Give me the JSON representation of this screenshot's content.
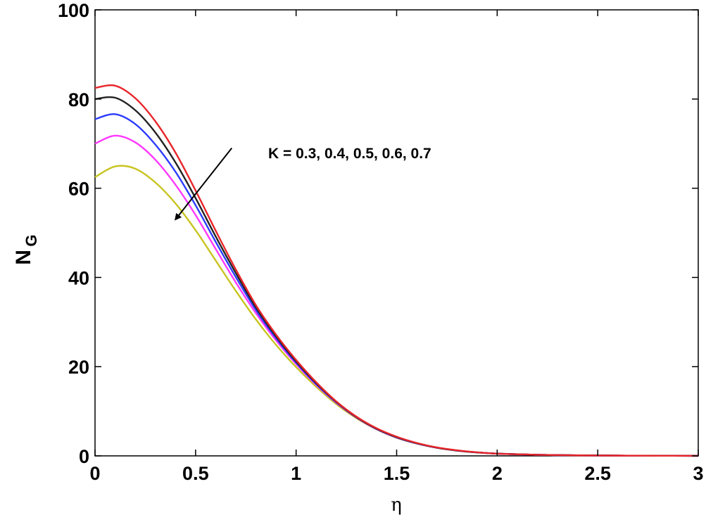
{
  "chart_data": {
    "type": "line",
    "title": "",
    "xlabel": "η",
    "ylabel": "N",
    "ylabel_subscript": "G",
    "xlim": [
      0,
      3
    ],
    "ylim": [
      0,
      100
    ],
    "x_ticks": [
      0,
      0.5,
      1,
      1.5,
      2,
      2.5,
      3
    ],
    "x_tick_labels": [
      "0",
      "0.5",
      "1",
      "1.5",
      "2",
      "2.5",
      "3"
    ],
    "y_ticks": [
      0,
      20,
      40,
      60,
      80,
      100
    ],
    "y_tick_labels": [
      "0",
      "20",
      "40",
      "60",
      "80",
      "100"
    ],
    "grid": false,
    "annotation": {
      "text": "K   = 0.3, 0.4, 0.5, 0.6, 0.7",
      "arrow_from": [
        0.68,
        69
      ],
      "arrow_to": [
        0.4,
        53
      ]
    },
    "x": [
      0,
      0.1,
      0.2,
      0.3,
      0.4,
      0.5,
      0.6,
      0.7,
      0.8,
      0.9,
      1.0,
      1.1,
      1.2,
      1.3,
      1.4,
      1.5,
      1.6,
      1.7,
      1.8,
      1.9,
      2.0,
      2.2,
      2.4,
      2.6,
      2.8,
      3.0
    ],
    "series": [
      {
        "color": "#e8262b",
        "values": [
          82.5,
          83.0,
          80.2,
          75.0,
          68.0,
          59.5,
          50.5,
          41.8,
          33.8,
          27.2,
          21.5,
          16.5,
          12.2,
          8.8,
          6.2,
          4.3,
          2.9,
          1.9,
          1.25,
          0.8,
          0.5,
          0.25,
          0.12,
          0.06,
          0.03,
          0.01
        ]
      },
      {
        "color": "#222222",
        "values": [
          80.0,
          80.3,
          77.5,
          72.5,
          65.8,
          57.8,
          49.2,
          41.0,
          33.3,
          26.8,
          21.2,
          16.3,
          12.1,
          8.7,
          6.1,
          4.2,
          2.85,
          1.85,
          1.2,
          0.78,
          0.5,
          0.25,
          0.12,
          0.06,
          0.03,
          0.01
        ]
      },
      {
        "color": "#2b3bff",
        "values": [
          75.5,
          76.6,
          74.4,
          69.8,
          63.7,
          56.2,
          48.0,
          40.1,
          32.7,
          26.4,
          20.9,
          16.1,
          12.0,
          8.65,
          6.05,
          4.15,
          2.8,
          1.85,
          1.2,
          0.78,
          0.5,
          0.24,
          0.12,
          0.06,
          0.03,
          0.01
        ]
      },
      {
        "color": "#ff38ff",
        "values": [
          70.0,
          71.8,
          70.3,
          66.4,
          60.8,
          54.0,
          46.4,
          38.9,
          32.0,
          25.9,
          20.6,
          15.9,
          11.9,
          8.6,
          6.0,
          4.1,
          2.78,
          1.82,
          1.18,
          0.77,
          0.5,
          0.24,
          0.12,
          0.06,
          0.03,
          0.01
        ]
      },
      {
        "color": "#c8c420",
        "values": [
          62.5,
          64.9,
          64.4,
          61.3,
          56.6,
          50.6,
          43.8,
          37.0,
          30.6,
          24.9,
          19.9,
          15.5,
          11.6,
          8.45,
          5.95,
          4.05,
          2.75,
          1.8,
          1.17,
          0.76,
          0.5,
          0.24,
          0.12,
          0.06,
          0.03,
          0.01
        ]
      }
    ]
  }
}
